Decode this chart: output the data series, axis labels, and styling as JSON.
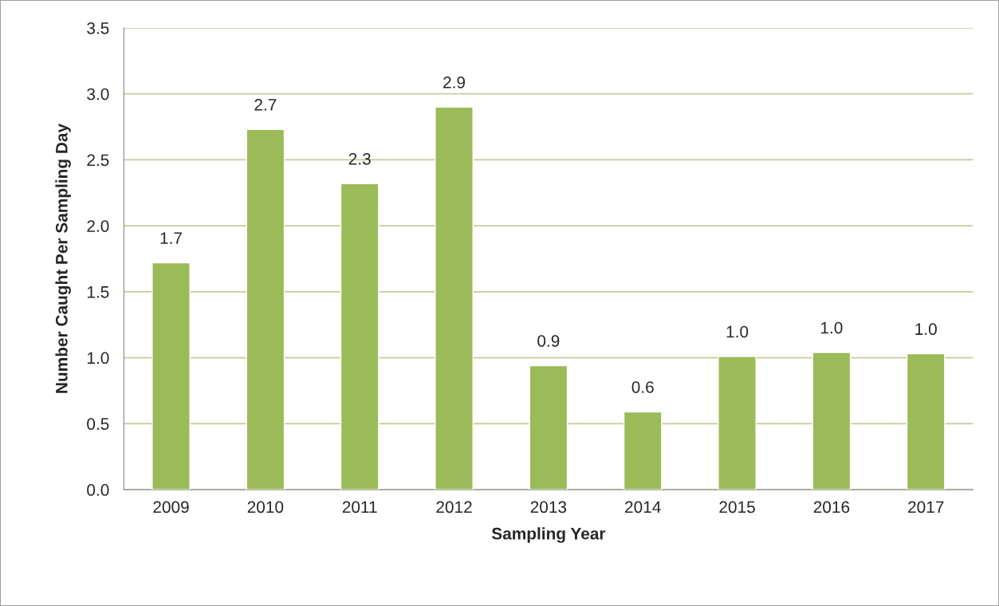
{
  "chart_data": {
    "type": "bar",
    "xlabel": "Sampling Year",
    "ylabel": "Number Caught Per Sampling Day",
    "categories": [
      "2009",
      "2010",
      "2011",
      "2012",
      "2013",
      "2014",
      "2015",
      "2016",
      "2017"
    ],
    "values": [
      1.72,
      2.73,
      2.32,
      2.9,
      0.94,
      0.59,
      1.01,
      1.04,
      1.03
    ],
    "value_labels": [
      "1.7",
      "2.7",
      "2.3",
      "2.9",
      "0.9",
      "0.6",
      "1.0",
      "1.0",
      "1.0"
    ],
    "color": "#9bbb59",
    "ylim": [
      0,
      3.5
    ],
    "yticks": [
      {
        "value": 0,
        "label": "0.0"
      },
      {
        "value": 0.5,
        "label": "0.5"
      },
      {
        "value": 1,
        "label": "1.0"
      },
      {
        "value": 1.5,
        "label": "1.5"
      },
      {
        "value": 2,
        "label": "2.0"
      },
      {
        "value": 2.5,
        "label": "2.5"
      },
      {
        "value": 3,
        "label": "3.0"
      },
      {
        "value": 3.5,
        "label": "3.5"
      }
    ],
    "grid": "y",
    "legend": false
  }
}
